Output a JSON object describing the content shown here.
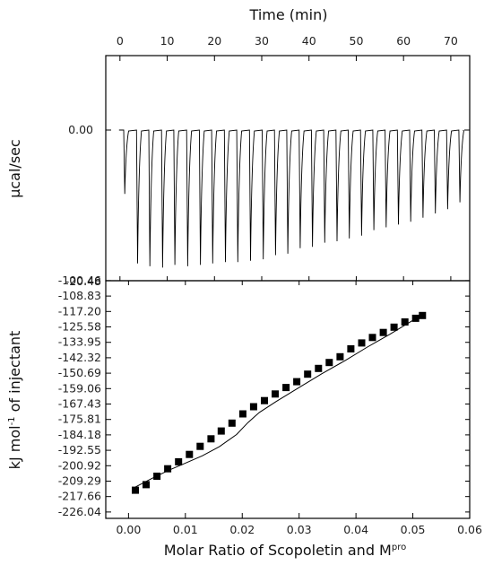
{
  "chart_data": [
    {
      "type": "line",
      "panel": "top",
      "title": "",
      "xlabel": "Time (min)",
      "ylabel": "µcal/sec",
      "xlim": [
        -3,
        74
      ],
      "x_ticks": [
        0,
        10,
        20,
        30,
        40,
        50,
        60,
        70
      ],
      "x_tick_labels": [
        "0",
        "10",
        "20",
        "30",
        "40",
        "50",
        "60",
        "70"
      ],
      "y_tick_labels": [
        "0.00",
        "-20.48"
      ],
      "baseline": 0.0,
      "injection_times": [
        0.8,
        3.5,
        6.1,
        8.8,
        11.4,
        14.1,
        16.8,
        19.4,
        22.1,
        24.7,
        27.4,
        30.1,
        32.7,
        35.3,
        37.9,
        40.5,
        43.1,
        45.7,
        48.3,
        50.9,
        53.5,
        56.1,
        58.7,
        61.3,
        63.9,
        66.5,
        69.1,
        71.7
      ],
      "peak_depths": [
        0.46,
        0.96,
        0.98,
        0.99,
        0.97,
        0.98,
        0.97,
        0.96,
        0.95,
        0.95,
        0.94,
        0.93,
        0.9,
        0.89,
        0.85,
        0.84,
        0.81,
        0.8,
        0.78,
        0.76,
        0.72,
        0.7,
        0.68,
        0.66,
        0.63,
        0.6,
        0.57,
        0.52
      ]
    },
    {
      "type": "scatter",
      "panel": "bottom",
      "title": "",
      "xlabel": "Molar Ratio of Scopoletin and M",
      "xlabel_sup": "pro",
      "ylabel": "kJ mol",
      "ylabel_sup": "-1",
      "ylabel_suffix": " of injectant",
      "xlim": [
        -0.004,
        0.06
      ],
      "ylim": [
        -229.5,
        -100.5
      ],
      "x_ticks": [
        0.0,
        0.01,
        0.02,
        0.03,
        0.04,
        0.05,
        0.06
      ],
      "x_tick_labels": [
        "0.00",
        "0.01",
        "0.02",
        "0.03",
        "0.04",
        "0.05",
        "0.06"
      ],
      "y_ticks": [
        -100.46,
        -108.83,
        -117.2,
        -125.58,
        -133.95,
        -142.32,
        -150.69,
        -159.06,
        -167.43,
        -175.81,
        -184.18,
        -192.55,
        -200.92,
        -209.29,
        -217.66,
        -226.04
      ],
      "y_tick_labels": [
        "-100.46",
        "-108.83",
        "-117.20",
        "-125.58",
        "-133.95",
        "-142.32",
        "-150.69",
        "-159.06",
        "-167.43",
        "-175.81",
        "-184.18",
        "-192.55",
        "-200.92",
        "-209.29",
        "-217.66",
        "-226.04"
      ],
      "series": [
        {
          "marker": "square",
          "color": "#000000",
          "x": [
            0.0012,
            0.0031,
            0.005,
            0.0069,
            0.0088,
            0.0107,
            0.0126,
            0.0145,
            0.0163,
            0.0182,
            0.0201,
            0.022,
            0.0239,
            0.0258,
            0.0277,
            0.0296,
            0.0315,
            0.0334,
            0.0353,
            0.0372,
            0.0391,
            0.041,
            0.0429,
            0.0448,
            0.0467,
            0.0486,
            0.0505,
            0.0517
          ],
          "y": [
            -214.2,
            -211.2,
            -206.6,
            -202.6,
            -198.8,
            -194.8,
            -190.4,
            -186.3,
            -182.1,
            -177.8,
            -172.8,
            -168.9,
            -165.6,
            -162.0,
            -158.5,
            -155.3,
            -151.2,
            -148.1,
            -144.9,
            -141.8,
            -137.5,
            -134.3,
            -131.3,
            -128.6,
            -125.7,
            -122.9,
            -120.9,
            -119.4
          ]
        },
        {
          "marker": "line",
          "color": "#000000",
          "x": [
            0.0012,
            0.004,
            0.007,
            0.01,
            0.013,
            0.016,
            0.019,
            0.021,
            0.023,
            0.026,
            0.03,
            0.034,
            0.038,
            0.042,
            0.046,
            0.05,
            0.0517
          ],
          "y": [
            -212.5,
            -208.0,
            -203.5,
            -199.5,
            -195.5,
            -190.5,
            -184.0,
            -177.5,
            -172.0,
            -166.0,
            -158.5,
            -151.0,
            -144.0,
            -136.5,
            -129.5,
            -122.0,
            -119.2
          ]
        }
      ]
    }
  ]
}
